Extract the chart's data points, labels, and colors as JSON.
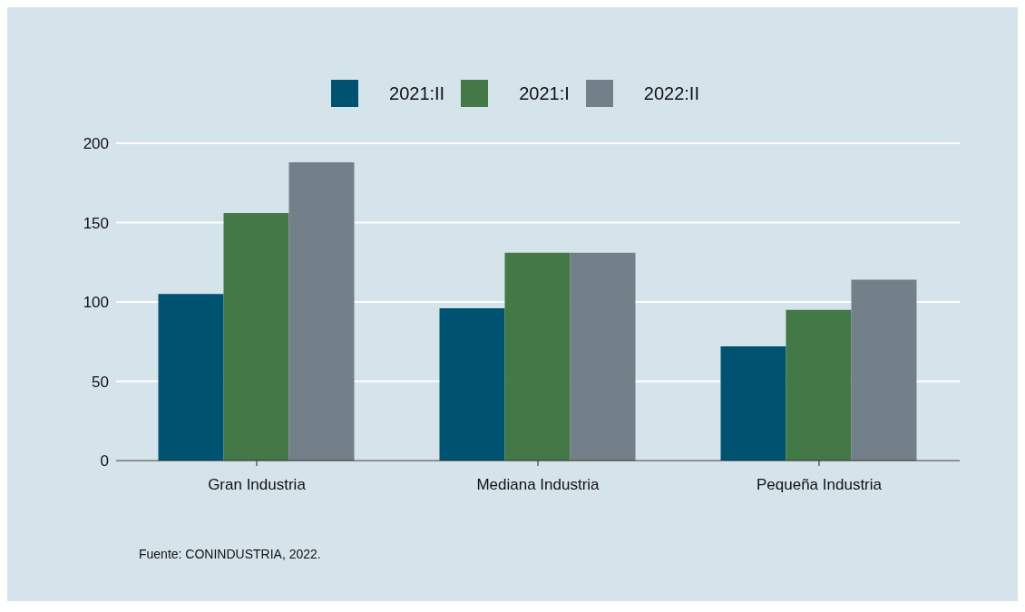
{
  "chart_data": {
    "type": "bar",
    "categories": [
      "Gran Industria",
      "Mediana Industria",
      "Pequeña Industria"
    ],
    "series": [
      {
        "name": "2021:II",
        "color": "#005271",
        "values": [
          105,
          96,
          72
        ]
      },
      {
        "name": "2021:I",
        "color": "#437847",
        "values": [
          156,
          131,
          95
        ]
      },
      {
        "name": "2022:II",
        "color": "#748089",
        "values": [
          188,
          131,
          114
        ]
      }
    ],
    "ylim": [
      0,
      200
    ],
    "yticks": [
      0,
      50,
      100,
      150,
      200
    ],
    "grid": "y",
    "legend": "top",
    "annotations": [
      "Fuente: CONINDUSTRIA, 2022."
    ]
  }
}
